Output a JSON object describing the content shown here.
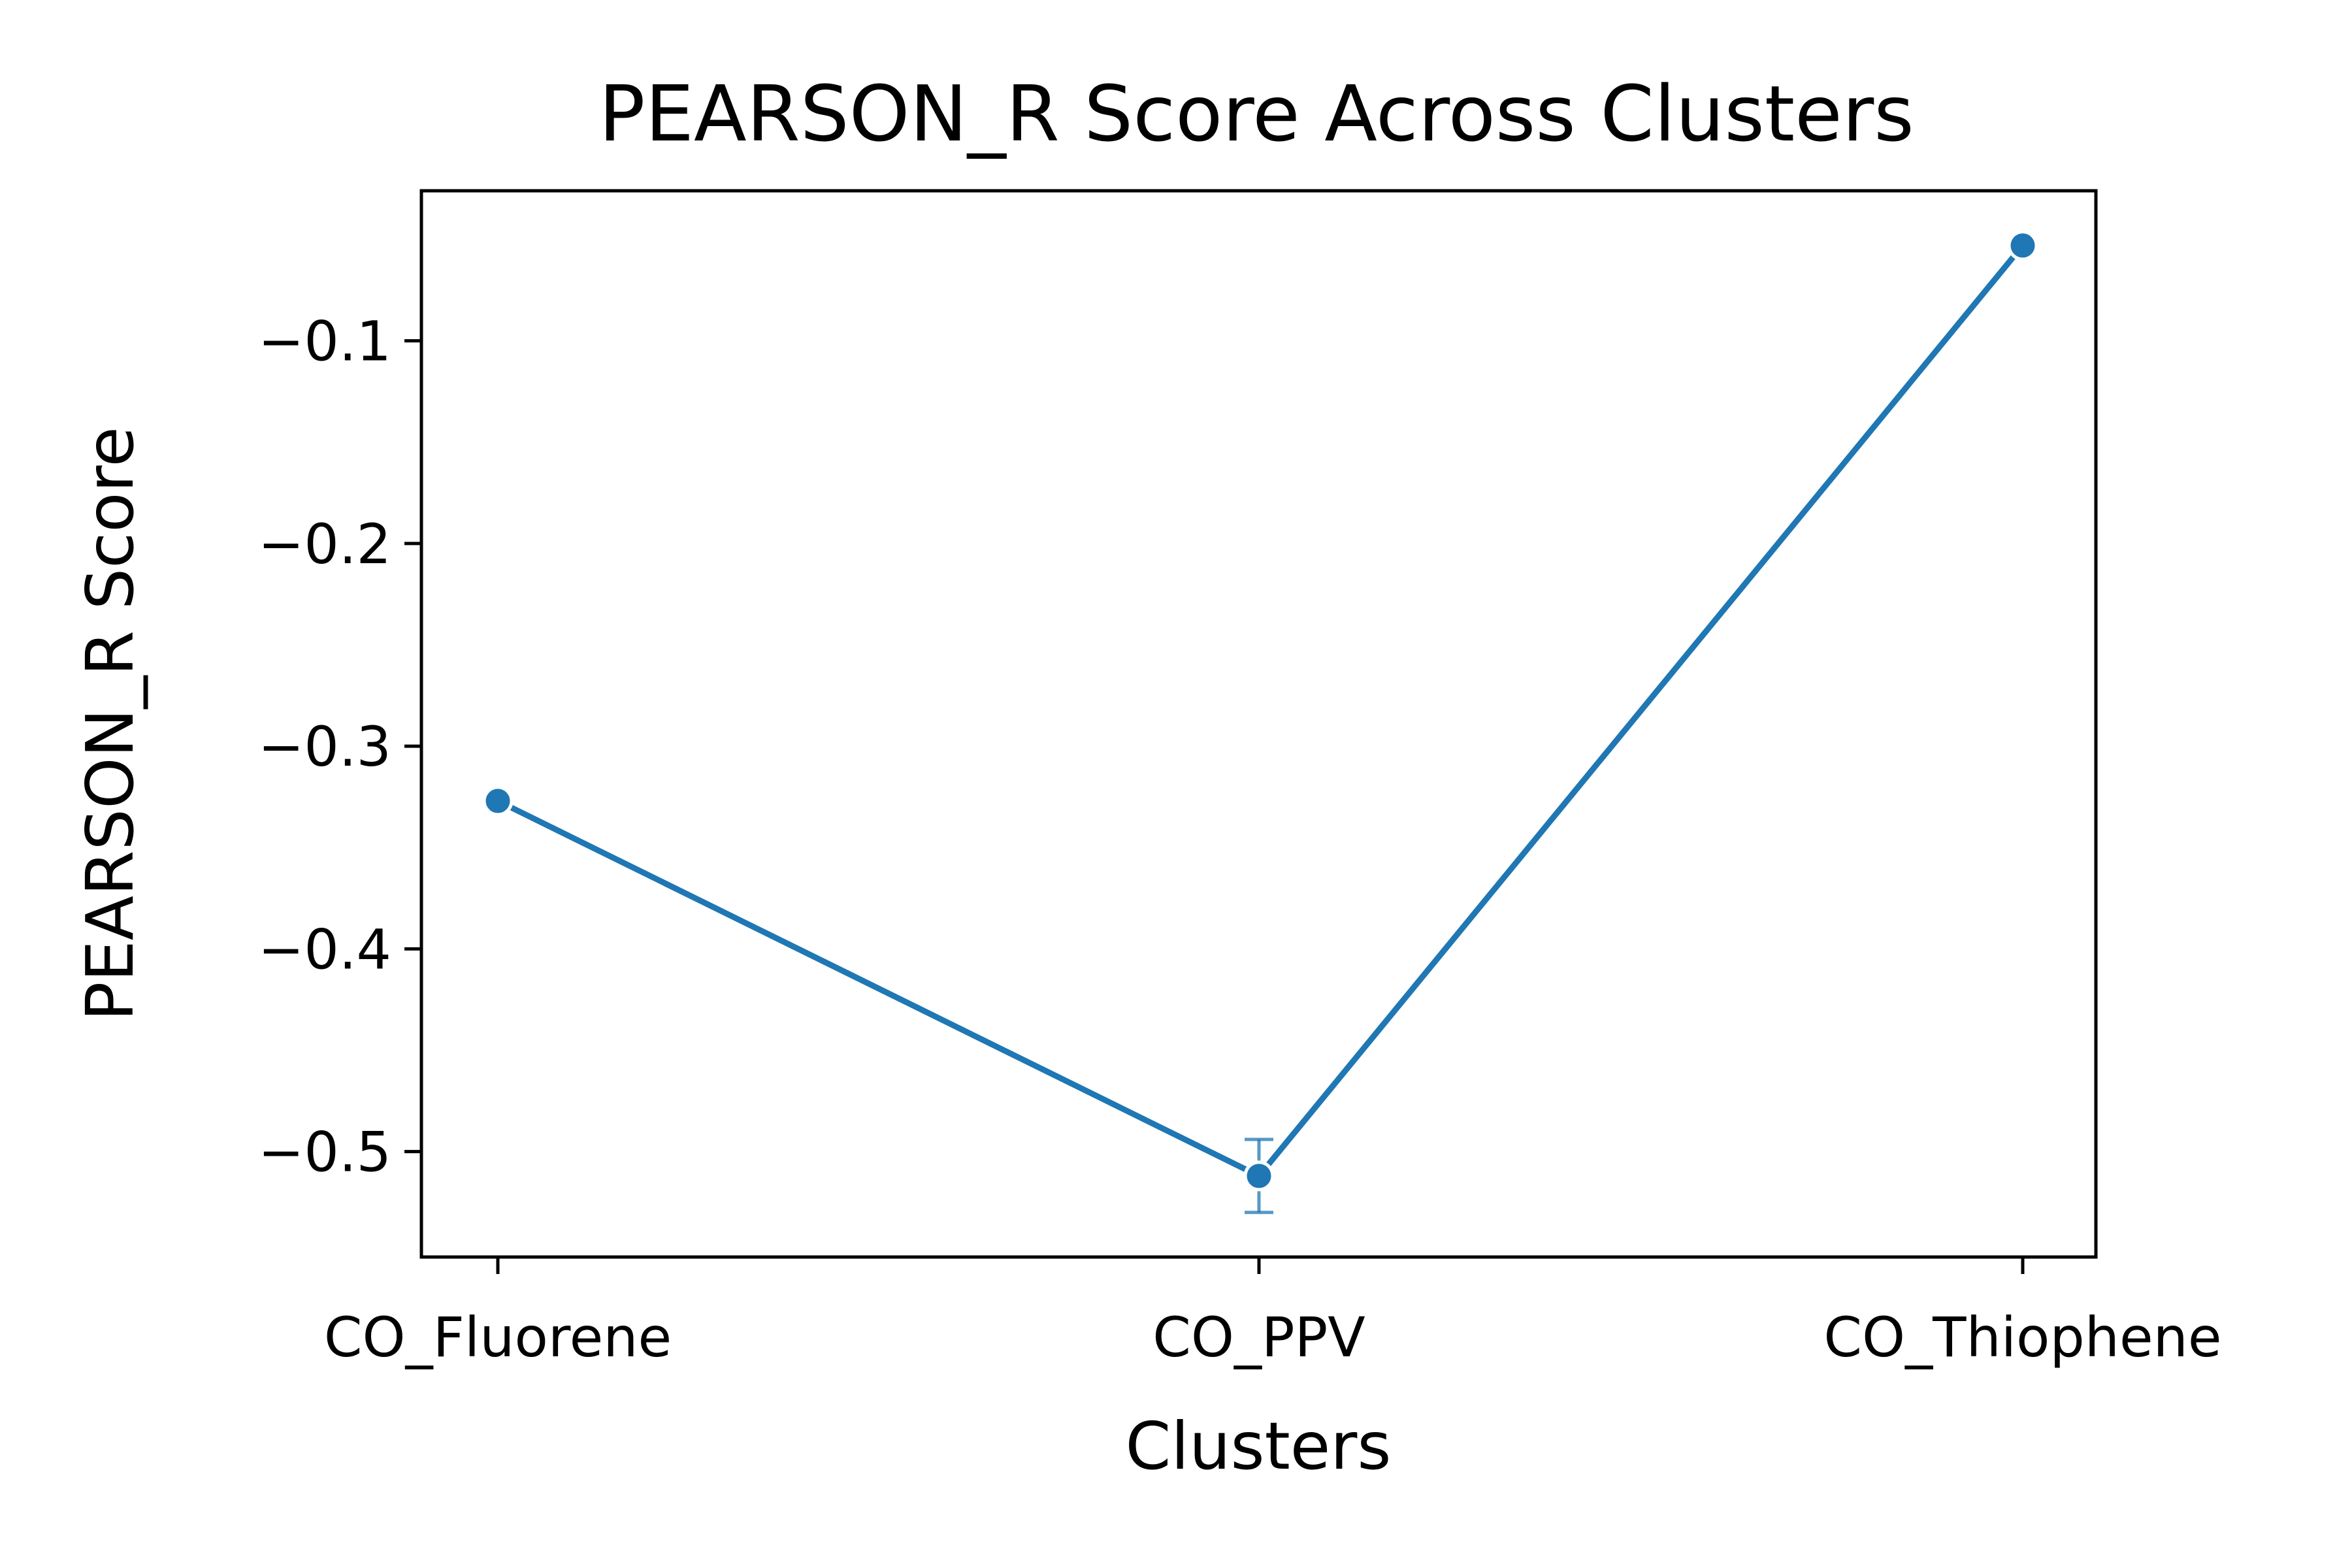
{
  "chart_data": {
    "type": "line",
    "title": "PEARSON_R Score Across Clusters",
    "xlabel": "Clusters",
    "ylabel": "PEARSON_R Score",
    "categories": [
      "CO_Fluorene",
      "CO_PPV",
      "CO_Thiophene"
    ],
    "series": [
      {
        "values": [
          -0.327,
          -0.512,
          -0.053
        ],
        "err_low": [
          -0.328,
          -0.53,
          -0.055
        ],
        "err_high": [
          -0.326,
          -0.494,
          -0.051
        ],
        "color": "#1f77b4"
      }
    ],
    "ylim": [
      -0.552,
      -0.026
    ],
    "yticks": [
      -0.5,
      -0.4,
      -0.3,
      -0.2,
      -0.1
    ],
    "ytick_labels": [
      "−0.5",
      "−0.4",
      "−0.3",
      "−0.2",
      "−0.1"
    ],
    "grid": false,
    "legend": "none"
  }
}
